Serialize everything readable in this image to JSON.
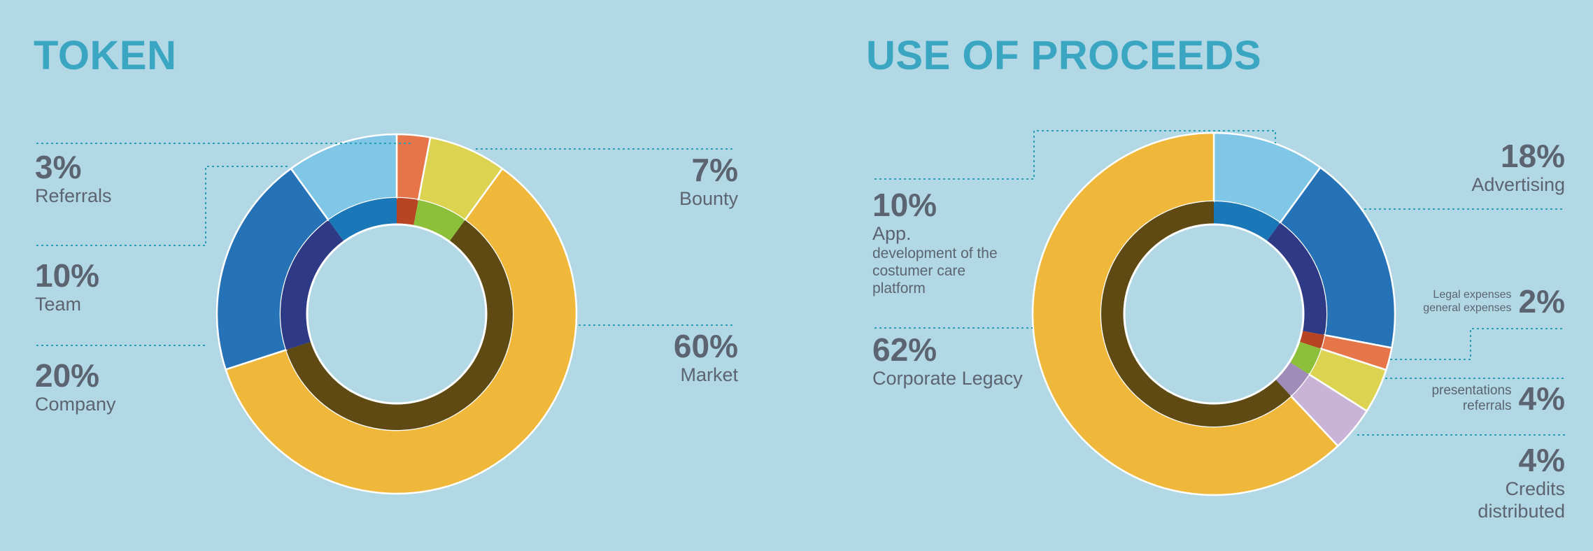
{
  "chart_data": [
    {
      "type": "pie",
      "title": "TOKEN",
      "categories": [
        "Referrals",
        "Bounty",
        "Market",
        "Company",
        "Team"
      ],
      "values": [
        3,
        7,
        60,
        20,
        10
      ],
      "labels": [
        "3%",
        "7%",
        "60%",
        "20%",
        "10%"
      ],
      "colors": [
        "#e6764a",
        "#dcd450",
        "#f0b83a",
        "#2573b6",
        "#80c7e7"
      ],
      "inner_colors": [
        "#b74422",
        "#8cc03a",
        "#5e4a12",
        "#2f3a86",
        "#1a78b8"
      ],
      "legend": "none"
    },
    {
      "type": "pie",
      "title": "USE OF PROCEEDS",
      "categories": [
        "App. development of the costumer care platform",
        "Advertising",
        "Legal expenses general expenses",
        "presentations referrals",
        "Credits distributed",
        "Corporate Legacy"
      ],
      "values": [
        10,
        18,
        2,
        4,
        4,
        62
      ],
      "labels": [
        "10%",
        "18%",
        "2%",
        "4%",
        "4%",
        "62%"
      ],
      "colors": [
        "#80c7e7",
        "#2573b6",
        "#e6764a",
        "#dcd450",
        "#c9b3d6",
        "#f0b83a"
      ],
      "inner_colors": [
        "#1a78b8",
        "#2f3a86",
        "#b74422",
        "#8cc03a",
        "#9f8cb8",
        "#5e4a12"
      ],
      "legend": "none"
    }
  ],
  "token_labels": {
    "referrals": {
      "pct": "3%",
      "name": "Referrals"
    },
    "team": {
      "pct": "10%",
      "name": "Team"
    },
    "company": {
      "pct": "20%",
      "name": "Company"
    },
    "bounty": {
      "pct": "7%",
      "name": "Bounty"
    },
    "market": {
      "pct": "60%",
      "name": "Market"
    }
  },
  "proceeds_labels": {
    "app": {
      "pct": "10%",
      "name": "App.",
      "detail": [
        "development of the",
        "costumer care",
        "platform"
      ]
    },
    "corporate": {
      "pct": "62%",
      "name": "Corporate Legacy"
    },
    "advertising": {
      "pct": "18%",
      "name": "Advertising"
    },
    "legal": {
      "pct": "2%",
      "lines": [
        "Legal expenses",
        "general expenses"
      ]
    },
    "presentations": {
      "pct": "4%",
      "lines": [
        "presentations",
        "referrals"
      ]
    },
    "credits": {
      "pct": "4%",
      "lines": [
        "Credits",
        "distributed"
      ]
    }
  },
  "colors": {
    "background": "#b2d8e6",
    "title": "#3aa6c2",
    "text": "#5b6470",
    "leader": "#2aa0b4"
  }
}
